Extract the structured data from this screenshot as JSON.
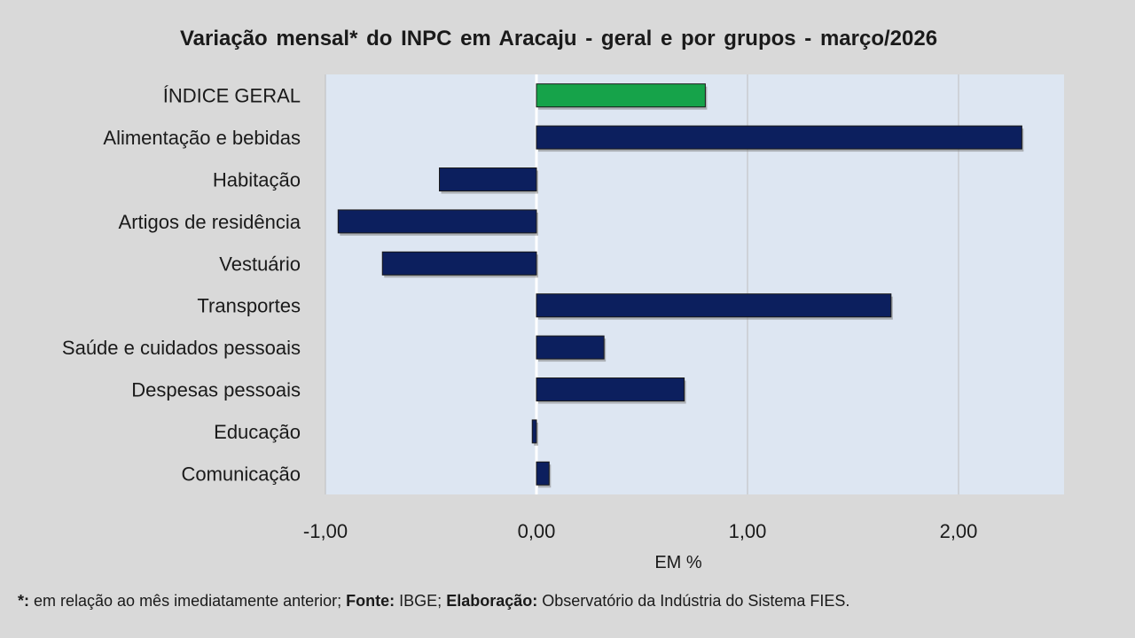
{
  "chart_data": {
    "type": "bar",
    "orientation": "horizontal",
    "title": "Variação  mensal*  do INPC em Aracaju  - geral e por grupos  - março/2026",
    "categories": [
      "ÍNDICE GERAL",
      "Alimentação e bebidas",
      "Habitação",
      "Artigos de residência",
      "Vestuário",
      "Transportes",
      "Saúde e cuidados pessoais",
      "Despesas pessoais",
      "Educação",
      "Comunicação"
    ],
    "values": [
      0.8,
      2.3,
      -0.46,
      -0.94,
      -0.73,
      1.68,
      0.32,
      0.7,
      -0.02,
      0.06
    ],
    "highlight_index": 0,
    "xlim": [
      -1.0,
      2.5
    ],
    "xticks": [
      -1.0,
      0.0,
      1.0,
      2.0
    ],
    "xtick_labels": [
      "-1,00",
      "0,00",
      "1,00",
      "2,00"
    ],
    "xlabel": "EM %",
    "grid": "vertical",
    "colors": {
      "bar": "#0c1f5e",
      "highlight": "#16a34a",
      "plot_bg": "#dde6f2",
      "page_bg": "#d9d9d9",
      "gridline": "#bfbfbf"
    }
  },
  "footnote": {
    "star": "*:",
    "part1": " em relação ao mês imediatamente  anterior; ",
    "fonte_label": "Fonte:",
    "fonte_value": " IBGE; ",
    "elab_label": "Elaboração:",
    "elab_value": " Observatório da Indústria do Sistema FIES."
  }
}
